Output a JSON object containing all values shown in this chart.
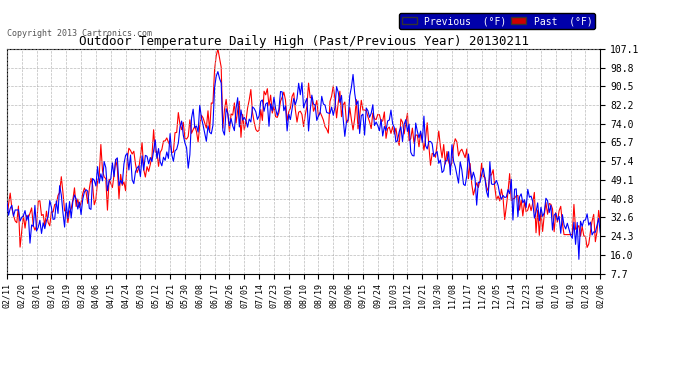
{
  "title": "Outdoor Temperature Daily High (Past/Previous Year) 20130211",
  "copyright": "Copyright 2013 Cartronics.com",
  "legend_previous": "Previous  (°F)",
  "legend_past": "Past  (°F)",
  "legend_prev_color": "#0000ff",
  "legend_past_color": "#ff0000",
  "legend_prev_bg": "#0000aa",
  "legend_past_bg": "#cc0000",
  "y_ticks": [
    7.7,
    16.0,
    24.3,
    32.6,
    40.8,
    49.1,
    57.4,
    65.7,
    74.0,
    82.2,
    90.5,
    98.8,
    107.1
  ],
  "x_labels": [
    "02/11",
    "02/20",
    "03/01",
    "03/10",
    "03/19",
    "03/28",
    "04/06",
    "04/15",
    "04/24",
    "05/03",
    "05/12",
    "05/21",
    "05/30",
    "06/08",
    "06/17",
    "06/26",
    "07/05",
    "07/14",
    "07/23",
    "08/01",
    "08/10",
    "08/19",
    "08/28",
    "09/06",
    "09/15",
    "09/24",
    "10/03",
    "10/12",
    "10/21",
    "10/30",
    "11/08",
    "11/17",
    "11/26",
    "12/05",
    "12/14",
    "12/23",
    "01/01",
    "01/10",
    "01/19",
    "01/28",
    "02/06"
  ],
  "background_color": "#ffffff",
  "plot_bg_color": "#ffffff",
  "grid_color": "#aaaaaa",
  "title_color": "#000000",
  "line_width": 0.8,
  "ylim": [
    7.7,
    107.1
  ],
  "title_fontsize": 9,
  "n_days": 361
}
